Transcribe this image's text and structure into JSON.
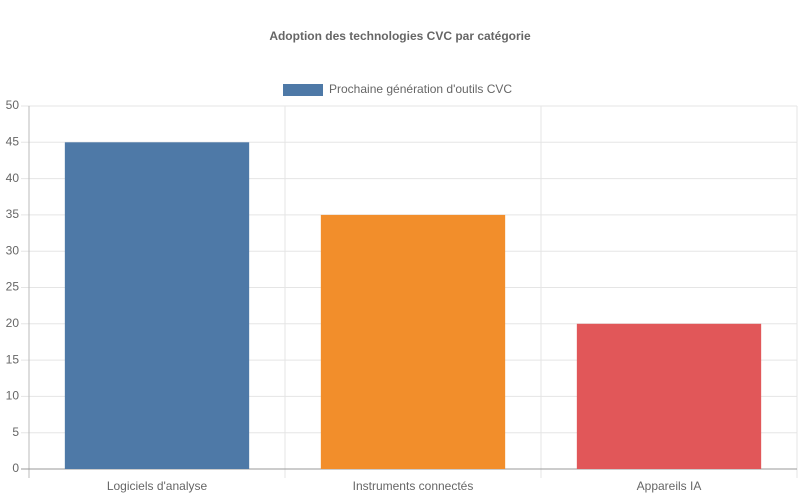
{
  "chart_data": {
    "type": "bar",
    "title": "Adoption des technologies CVC par catégorie",
    "categories": [
      "Logiciels d'analyse",
      "Instruments connectés",
      "Appareils IA"
    ],
    "series": [
      {
        "name": "Prochaine génération d'outils CVC",
        "colors": [
          "#4e79a7",
          "#f28e2b",
          "#e15759"
        ],
        "values": [
          45,
          35,
          20
        ]
      }
    ],
    "ylim": [
      0,
      50
    ],
    "yticks": [
      0,
      5,
      10,
      15,
      20,
      25,
      30,
      35,
      40,
      45,
      50
    ],
    "grid": true,
    "legend": "top"
  }
}
